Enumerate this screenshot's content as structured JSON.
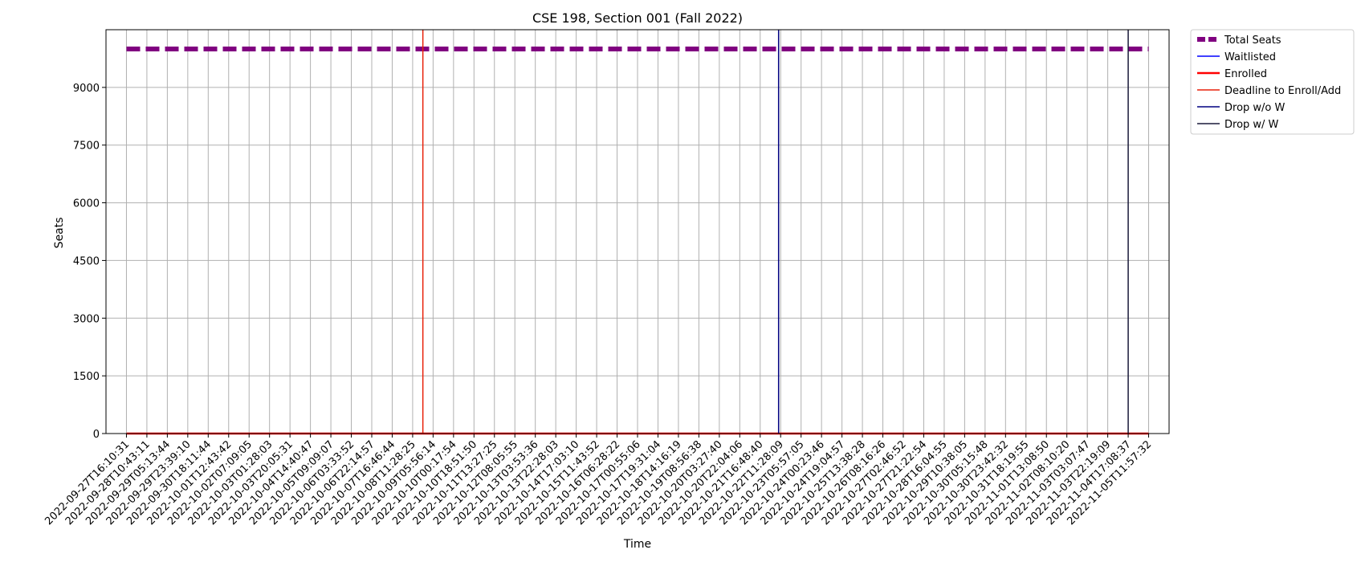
{
  "chart_data": {
    "type": "line",
    "title": "CSE 198, Section 001 (Fall 2022)",
    "xlabel": "Time",
    "ylabel": "Seats",
    "ylim": [
      0,
      10500
    ],
    "y_ticks": [
      0,
      1500,
      3000,
      4500,
      6000,
      7500,
      9000
    ],
    "grid": true,
    "legend_position": "outside top-right",
    "x": [
      "2022-09-27T16:10:31",
      "2022-09-28T10:43:11",
      "2022-09-29T05:13:44",
      "2022-09-29T23:39:10",
      "2022-09-30T18:11:44",
      "2022-10-01T12:43:42",
      "2022-10-02T07:09:05",
      "2022-10-03T01:28:03",
      "2022-10-03T20:05:31",
      "2022-10-04T14:40:47",
      "2022-10-05T09:09:07",
      "2022-10-06T03:33:52",
      "2022-10-06T22:14:57",
      "2022-10-07T16:46:44",
      "2022-10-08T11:28:25",
      "2022-10-09T05:56:14",
      "2022-10-10T00:17:54",
      "2022-10-10T18:51:50",
      "2022-10-11T13:27:25",
      "2022-10-12T08:05:55",
      "2022-10-13T03:53:36",
      "2022-10-13T22:28:03",
      "2022-10-14T17:03:10",
      "2022-10-15T11:43:52",
      "2022-10-16T06:28:22",
      "2022-10-17T00:55:06",
      "2022-10-17T19:31:04",
      "2022-10-18T14:16:19",
      "2022-10-19T08:56:38",
      "2022-10-20T03:27:40",
      "2022-10-20T22:04:06",
      "2022-10-21T16:48:40",
      "2022-10-22T11:28:09",
      "2022-10-23T05:57:05",
      "2022-10-24T00:23:46",
      "2022-10-24T19:04:57",
      "2022-10-25T13:38:28",
      "2022-10-26T08:16:26",
      "2022-10-27T02:46:52",
      "2022-10-27T21:22:54",
      "2022-10-28T16:04:55",
      "2022-10-29T10:38:05",
      "2022-10-30T05:15:48",
      "2022-10-30T23:42:32",
      "2022-10-31T18:19:55",
      "2022-11-01T13:08:50",
      "2022-11-02T08:10:20",
      "2022-11-03T03:07:47",
      "2022-11-03T22:19:09",
      "2022-11-04T17:08:37",
      "2022-11-05T11:57:32"
    ],
    "series": [
      {
        "name": "Total Seats",
        "color": "#800080",
        "style": "dashed",
        "values": [
          10000,
          10000,
          10000,
          10000,
          10000,
          10000,
          10000,
          10000,
          10000,
          10000,
          10000,
          10000,
          10000,
          10000,
          10000,
          10000,
          10000,
          10000,
          10000,
          10000,
          10000,
          10000,
          10000,
          10000,
          10000,
          10000,
          10000,
          10000,
          10000,
          10000,
          10000,
          10000,
          10000,
          10000,
          10000,
          10000,
          10000,
          10000,
          10000,
          10000,
          10000,
          10000,
          10000,
          10000,
          10000,
          10000,
          10000,
          10000,
          10000,
          10000,
          10000
        ]
      },
      {
        "name": "Waitlisted",
        "color": "#0000ff",
        "style": "solid",
        "values": [
          0,
          0,
          0,
          0,
          0,
          0,
          0,
          0,
          0,
          0,
          0,
          0,
          0,
          0,
          0,
          0,
          0,
          0,
          0,
          0,
          0,
          0,
          0,
          0,
          0,
          0,
          0,
          0,
          0,
          0,
          0,
          0,
          0,
          0,
          0,
          0,
          0,
          0,
          0,
          0,
          0,
          0,
          0,
          0,
          0,
          0,
          0,
          0,
          0,
          0,
          0
        ]
      },
      {
        "name": "Enrolled",
        "color": "#ff0000",
        "style": "solid",
        "values": [
          0,
          0,
          0,
          0,
          0,
          0,
          0,
          0,
          0,
          0,
          0,
          0,
          0,
          0,
          0,
          0,
          0,
          0,
          0,
          0,
          0,
          1,
          1,
          1,
          1,
          1,
          1,
          1,
          1,
          1,
          1,
          1,
          1,
          1,
          1,
          1,
          1,
          1,
          1,
          1,
          1,
          1,
          1,
          1,
          1,
          1,
          1,
          1,
          1,
          1,
          1
        ]
      }
    ],
    "vlines": [
      {
        "name": "Deadline to Enroll/Add",
        "color": "#e8210a",
        "x": "2022-10-08T11:28:25",
        "offset": 0.5
      },
      {
        "name": "Drop w/o W",
        "color": "#000080",
        "x": "2022-10-22T11:28:09",
        "offset": -0.1
      },
      {
        "name": "Drop w/ W",
        "color": "#1a1a3a",
        "x": "2022-11-05T11:57:32",
        "offset": -1.0
      }
    ]
  }
}
